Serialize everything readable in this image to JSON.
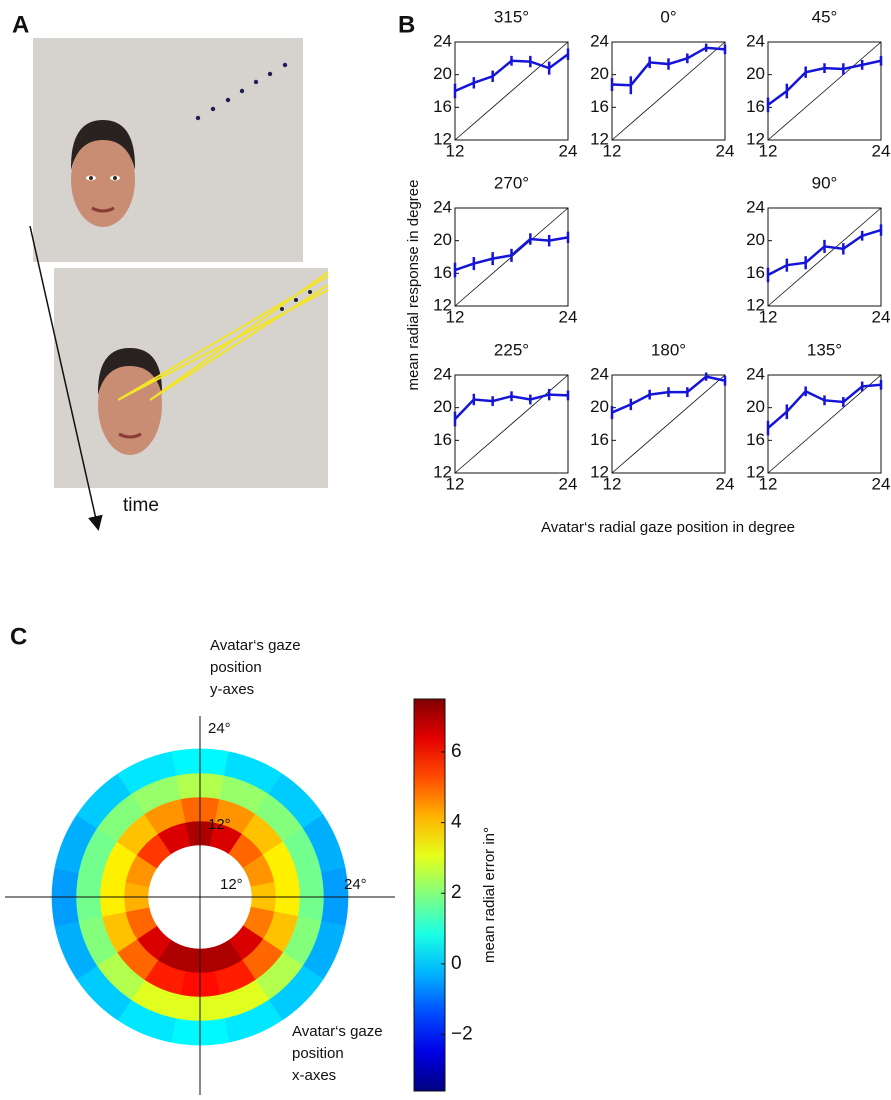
{
  "panel_labels": [
    "A",
    "B",
    "C"
  ],
  "panel_a": {
    "time_label": "time"
  },
  "panel_b": {
    "y_label": "mean  radial response in degree",
    "x_label": "Avatar‘s radial gaze position in degree"
  },
  "chart_data": [
    {
      "type": "line",
      "title": "315°",
      "x": [
        12,
        14,
        16,
        18,
        20,
        22,
        24
      ],
      "values": [
        18,
        19,
        19.8,
        21.7,
        21.6,
        20.8,
        22.5
      ],
      "errors": [
        0.9,
        0.7,
        0.7,
        0.6,
        0.7,
        0.8,
        0.7
      ],
      "color": "#1515d8",
      "xlim": [
        12,
        24
      ],
      "ylim": [
        12,
        24
      ],
      "xticks": [
        12,
        24
      ],
      "yticks": [
        12,
        16,
        20,
        24
      ]
    },
    {
      "type": "line",
      "title": "0°",
      "x": [
        12,
        14,
        16,
        18,
        20,
        22,
        24
      ],
      "values": [
        18.8,
        18.7,
        21.5,
        21.3,
        22,
        23.3,
        23.1
      ],
      "errors": [
        0.8,
        1.1,
        0.7,
        0.7,
        0.6,
        0.5,
        0.6
      ],
      "color": "#1515d8",
      "xlim": [
        12,
        24
      ],
      "ylim": [
        12,
        24
      ],
      "xticks": [
        12,
        24
      ],
      "yticks": [
        12,
        16,
        20,
        24
      ]
    },
    {
      "type": "line",
      "title": "45°",
      "x": [
        12,
        14,
        16,
        18,
        20,
        22,
        24
      ],
      "values": [
        16.3,
        18,
        20.3,
        20.8,
        20.7,
        21.2,
        21.7
      ],
      "errors": [
        0.9,
        0.9,
        0.7,
        0.6,
        0.7,
        0.6,
        0.6
      ],
      "color": "#1515d8",
      "xlim": [
        12,
        24
      ],
      "ylim": [
        12,
        24
      ],
      "xticks": [
        12,
        24
      ],
      "yticks": [
        12,
        16,
        20,
        24
      ]
    },
    {
      "type": "line",
      "title": "270°",
      "x": [
        12,
        14,
        16,
        18,
        20,
        22,
        24
      ],
      "values": [
        16.4,
        17.2,
        17.8,
        18.2,
        20.2,
        20,
        20.4
      ],
      "errors": [
        0.9,
        0.8,
        0.8,
        0.8,
        0.7,
        0.7,
        0.7
      ],
      "color": "#1515d8",
      "xlim": [
        12,
        24
      ],
      "ylim": [
        12,
        24
      ],
      "xticks": [
        12,
        24
      ],
      "yticks": [
        12,
        16,
        20,
        24
      ]
    },
    {
      "type": "line",
      "title": "90°",
      "x": [
        12,
        14,
        16,
        18,
        20,
        22,
        24
      ],
      "values": [
        15.8,
        17,
        17.3,
        19.3,
        19,
        20.6,
        21.3
      ],
      "errors": [
        0.9,
        0.8,
        0.8,
        0.8,
        0.7,
        0.6,
        0.7
      ],
      "color": "#1515d8",
      "xlim": [
        12,
        24
      ],
      "ylim": [
        12,
        24
      ],
      "xticks": [
        12,
        24
      ],
      "yticks": [
        12,
        16,
        20,
        24
      ]
    },
    {
      "type": "line",
      "title": "225°",
      "x": [
        12,
        14,
        16,
        18,
        20,
        22,
        24
      ],
      "values": [
        18.6,
        21,
        20.8,
        21.4,
        21,
        21.6,
        21.5
      ],
      "errors": [
        0.9,
        0.7,
        0.6,
        0.6,
        0.6,
        0.7,
        0.6
      ],
      "color": "#1515d8",
      "xlim": [
        12,
        24
      ],
      "ylim": [
        12,
        24
      ],
      "xticks": [
        12,
        24
      ],
      "yticks": [
        12,
        16,
        20,
        24
      ]
    },
    {
      "type": "line",
      "title": "180°",
      "x": [
        12,
        14,
        16,
        18,
        20,
        22,
        24
      ],
      "values": [
        19.4,
        20.4,
        21.6,
        21.9,
        21.9,
        23.8,
        23.3
      ],
      "errors": [
        0.8,
        0.7,
        0.6,
        0.6,
        0.6,
        0.5,
        0.6
      ],
      "color": "#1515d8",
      "xlim": [
        12,
        24
      ],
      "ylim": [
        12,
        24
      ],
      "xticks": [
        12,
        24
      ],
      "yticks": [
        12,
        16,
        20,
        24
      ]
    },
    {
      "type": "line",
      "title": "135°",
      "x": [
        12,
        14,
        16,
        18,
        20,
        22,
        24
      ],
      "values": [
        17.5,
        19.5,
        22,
        20.9,
        20.7,
        22.6,
        22.8
      ],
      "errors": [
        0.9,
        0.9,
        0.6,
        0.6,
        0.6,
        0.6,
        0.6
      ],
      "color": "#1515d8",
      "xlim": [
        12,
        24
      ],
      "ylim": [
        12,
        24
      ],
      "xticks": [
        12,
        24
      ],
      "yticks": [
        12,
        16,
        20,
        24
      ]
    },
    {
      "type": "polar_heatmap",
      "theta": [
        0,
        22.5,
        45,
        67.5,
        90,
        112.5,
        135,
        157.5,
        180,
        202.5,
        225,
        247.5,
        270,
        292.5,
        315,
        337.5
      ],
      "r_edges": [
        12,
        15,
        18,
        21,
        24
      ],
      "values": [
        [
          7,
          5,
          2.5,
          0.5
        ],
        [
          6.5,
          4.5,
          2.2,
          0.2
        ],
        [
          5,
          4,
          2,
          0
        ],
        [
          4.5,
          3.5,
          1.8,
          -0.3
        ],
        [
          4,
          3.5,
          1.8,
          -0.5
        ],
        [
          4.8,
          4,
          2,
          -0.3
        ],
        [
          6.5,
          5,
          2.5,
          0
        ],
        [
          7,
          5.8,
          3,
          0.3
        ],
        [
          7,
          6,
          3,
          0.5
        ],
        [
          7,
          5.8,
          3,
          0.3
        ],
        [
          6.5,
          5,
          2.5,
          0
        ],
        [
          5,
          4,
          2,
          -0.3
        ],
        [
          4.2,
          3.5,
          1.8,
          -0.5
        ],
        [
          4.5,
          3.5,
          1.8,
          -0.3
        ],
        [
          5.5,
          4,
          2,
          0
        ],
        [
          6.5,
          4.5,
          2.2,
          0.3
        ]
      ],
      "rticks": [
        {
          "value": 12,
          "label": "12°"
        },
        {
          "value": 24,
          "label": "24°"
        }
      ],
      "clim": [
        -3.6,
        7.5
      ],
      "cticks": [
        {
          "value": -2,
          "label": "−2"
        },
        0,
        2,
        4,
        6
      ],
      "colorbar_label": "mean radial error in°",
      "y_axis_label": [
        "Avatar‘s gaze",
        "position",
        "y-axes"
      ],
      "x_axis_label": [
        "Avatar‘s gaze",
        "position",
        "x-axes"
      ]
    }
  ]
}
